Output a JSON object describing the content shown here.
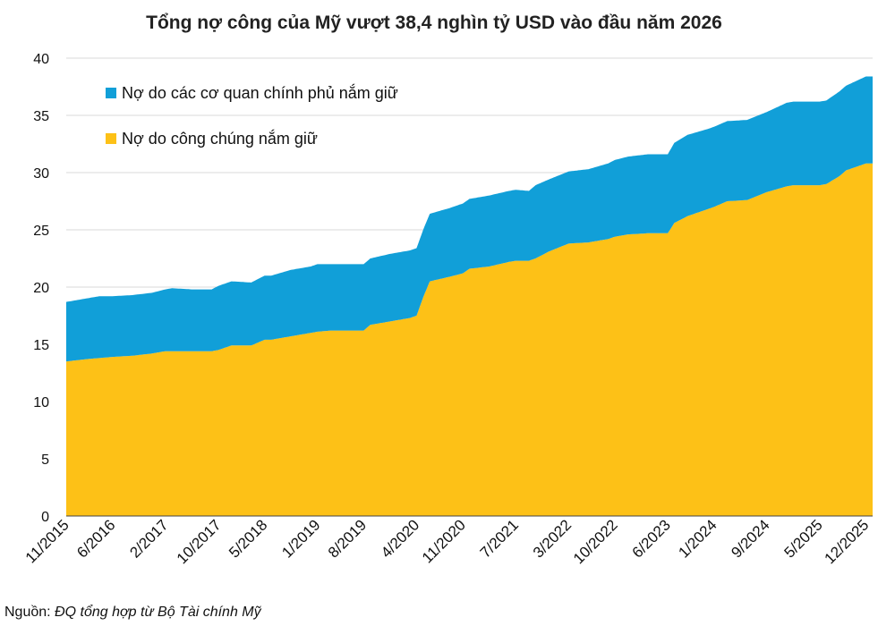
{
  "header": {
    "title": "Tổng nợ công của Mỹ vượt 38,4 nghìn tỷ USD vào đầu năm 2026"
  },
  "source": {
    "prefix": "Nguồn:",
    "text": "ĐQ tổng hợp từ Bộ Tài chính Mỹ"
  },
  "chart_data": {
    "type": "area",
    "stacked": true,
    "title": "Tổng nợ công của Mỹ vượt 38,4 nghìn tỷ USD vào đầu năm 2026",
    "xlabel": "",
    "ylabel": "",
    "ylim": [
      0,
      40
    ],
    "yticks": [
      0,
      5,
      10,
      15,
      20,
      25,
      30,
      35,
      40
    ],
    "xlim": [
      "2015-11",
      "2026-01"
    ],
    "xticks": [
      "11/2015",
      "6/2016",
      "2/2017",
      "10/2017",
      "5/2018",
      "1/2019",
      "8/2019",
      "4/2020",
      "11/2020",
      "7/2021",
      "3/2022",
      "10/2022",
      "6/2023",
      "1/2024",
      "9/2024",
      "5/2025",
      "12/2025"
    ],
    "grid": {
      "horizontal": true,
      "vertical": false
    },
    "legend_position": "top-left",
    "x": [
      "2015-11",
      "2016-02",
      "2016-04",
      "2016-06",
      "2016-09",
      "2016-12",
      "2017-02",
      "2017-03",
      "2017-06",
      "2017-09",
      "2017-10",
      "2017-12",
      "2018-03",
      "2018-05",
      "2018-06",
      "2018-09",
      "2018-12",
      "2019-01",
      "2019-03",
      "2019-06",
      "2019-08",
      "2019-09",
      "2019-12",
      "2020-02",
      "2020-03",
      "2020-04",
      "2020-05",
      "2020-06",
      "2020-09",
      "2020-11",
      "2020-12",
      "2021-03",
      "2021-06",
      "2021-07",
      "2021-09",
      "2021-10",
      "2021-12",
      "2022-03",
      "2022-06",
      "2022-09",
      "2022-10",
      "2022-12",
      "2023-03",
      "2023-06",
      "2023-07",
      "2023-09",
      "2023-12",
      "2024-01",
      "2024-03",
      "2024-06",
      "2024-09",
      "2024-12",
      "2025-01",
      "2025-03",
      "2025-05",
      "2025-06",
      "2025-08",
      "2025-09",
      "2025-12",
      "2026-01"
    ],
    "series": [
      {
        "name": "Nợ do công chúng nắm giữ",
        "color": "#FDC117",
        "values": [
          13.5,
          13.7,
          13.8,
          13.9,
          14.0,
          14.2,
          14.4,
          14.4,
          14.4,
          14.4,
          14.5,
          14.9,
          14.9,
          15.4,
          15.4,
          15.7,
          16.0,
          16.1,
          16.2,
          16.2,
          16.2,
          16.7,
          17.0,
          17.2,
          17.3,
          17.5,
          19.1,
          20.5,
          20.9,
          21.2,
          21.6,
          21.8,
          22.2,
          22.3,
          22.3,
          22.5,
          23.1,
          23.8,
          23.9,
          24.2,
          24.4,
          24.6,
          24.7,
          24.7,
          25.6,
          26.2,
          26.8,
          27.0,
          27.5,
          27.6,
          28.3,
          28.8,
          28.9,
          28.9,
          28.9,
          29.0,
          29.7,
          30.2,
          30.8,
          30.8
        ]
      },
      {
        "name": "Nợ do các cơ quan chính phủ nắm giữ",
        "color": "#119FD8",
        "values": [
          5.2,
          5.3,
          5.4,
          5.3,
          5.3,
          5.3,
          5.4,
          5.5,
          5.4,
          5.4,
          5.6,
          5.6,
          5.5,
          5.6,
          5.6,
          5.8,
          5.8,
          5.9,
          5.8,
          5.8,
          5.8,
          5.8,
          5.9,
          5.9,
          5.9,
          5.9,
          5.9,
          5.9,
          6.0,
          6.1,
          6.1,
          6.2,
          6.2,
          6.2,
          6.1,
          6.4,
          6.3,
          6.3,
          6.4,
          6.6,
          6.7,
          6.8,
          6.9,
          6.9,
          7.0,
          7.1,
          7.0,
          7.0,
          7.0,
          7.0,
          7.0,
          7.3,
          7.3,
          7.3,
          7.3,
          7.3,
          7.4,
          7.4,
          7.6,
          7.6
        ]
      }
    ]
  }
}
